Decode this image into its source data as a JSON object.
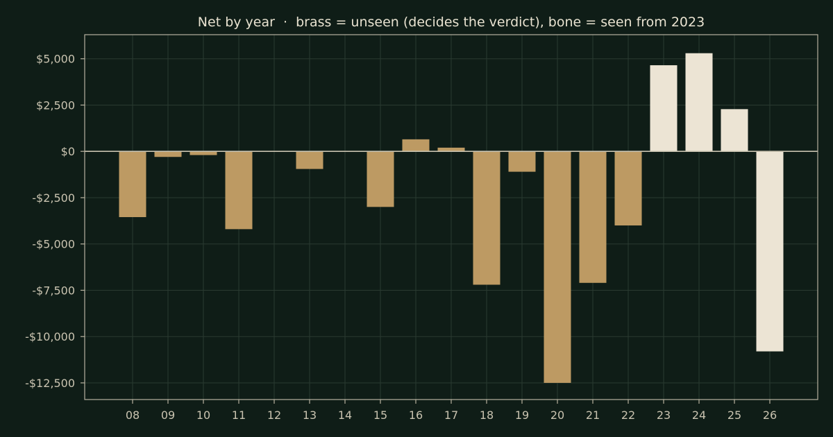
{
  "chart_data": {
    "type": "bar",
    "title": "Net by year  ·  brass = unseen (decides the verdict), bone = seen from 2023",
    "xlabel": "",
    "ylabel": "",
    "categories": [
      "08",
      "09",
      "10",
      "11",
      "12",
      "13",
      "14",
      "15",
      "16",
      "17",
      "18",
      "19",
      "20",
      "21",
      "22",
      "23",
      "24",
      "25",
      "26"
    ],
    "values": [
      -3550,
      -300,
      -200,
      -4200,
      -30,
      -950,
      -20,
      -3000,
      650,
      200,
      -7200,
      -1100,
      -12500,
      -7100,
      -4000,
      4650,
      5300,
      2280,
      -10800
    ],
    "groups": [
      "unseen",
      "unseen",
      "unseen",
      "unseen",
      "unseen",
      "unseen",
      "unseen",
      "unseen",
      "unseen",
      "unseen",
      "unseen",
      "unseen",
      "unseen",
      "unseen",
      "unseen",
      "seen",
      "seen",
      "seen",
      "seen"
    ],
    "ylim": [
      -13400,
      6300
    ],
    "yticks": [
      5000,
      2500,
      0,
      -2500,
      -5000,
      -7500,
      -10000,
      -12500
    ],
    "ytick_labels": [
      "$5,000",
      "$2,500",
      "$0",
      "-$2,500",
      "-$5,000",
      "-$7,500",
      "-$10,000",
      "-$12,500"
    ],
    "grid": true,
    "legend": "none",
    "colors": {
      "unseen": "#bd9a63",
      "seen": "#ece4d4"
    }
  }
}
